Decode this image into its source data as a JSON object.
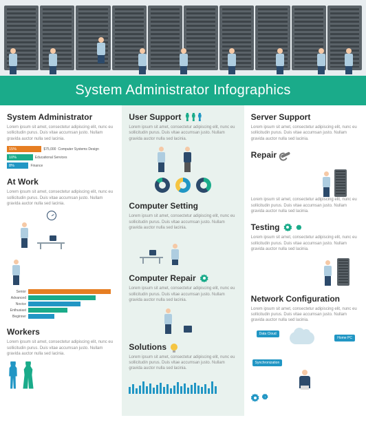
{
  "banner_title": "System Administrator Infographics",
  "lorem": "Lorem ipsum sit amet, consectetur adipiscing elit, nunc eu sollicitudin purus. Duis vitae accumsan justo. Nullam gravida auctor nulla sed lacinia.",
  "colors": {
    "primary_teal": "#1aab8a",
    "blue": "#2196c4",
    "navy": "#2c4a6b",
    "orange": "#e67e22",
    "yellow": "#f5c542",
    "col2_bg": "#e9f2ee"
  },
  "col1": {
    "sysadmin": {
      "title": "System Administrator",
      "bars": [
        {
          "pct": "15%",
          "value": "$75,000",
          "label": "Computer Systems Design",
          "color": "#e67e22",
          "width_pct": 32
        },
        {
          "pct": "10%",
          "value": "",
          "label": "Educational Services",
          "color": "#1aab8a",
          "width_pct": 24
        },
        {
          "pct": "8%",
          "value": "",
          "label": "Finance",
          "color": "#2196c4",
          "width_pct": 20
        }
      ]
    },
    "atwork": {
      "title": "At Work"
    },
    "skills": {
      "levels": [
        {
          "label": "Senior",
          "color": "#e67e22",
          "width_pct": 76
        },
        {
          "label": "Advanced",
          "color": "#1aab8a",
          "width_pct": 62
        },
        {
          "label": "Novice",
          "color": "#2196c4",
          "width_pct": 48
        },
        {
          "label": "Enthusiast",
          "color": "#1aab8a",
          "width_pct": 36
        },
        {
          "label": "Beginner",
          "color": "#2196c4",
          "width_pct": 24
        }
      ]
    },
    "workers": {
      "title": "Workers"
    }
  },
  "col2": {
    "user_support": {
      "title": "User Support",
      "donuts": [
        {
          "bg": "conic-gradient(#2c4a6b 0 85%, #1aab8a 85% 100%)"
        },
        {
          "bg": "conic-gradient(#2196c4 0 60%, #f5c542 60% 100%)"
        },
        {
          "bg": "conic-gradient(#1aab8a 0 40%, #2c4a6b 40% 100%)"
        }
      ]
    },
    "computer_setting": {
      "title": "Computer Setting"
    },
    "computer_repair": {
      "title": "Computer Repair"
    },
    "solutions": {
      "title": "Solutions",
      "bars": [
        10,
        14,
        8,
        12,
        18,
        11,
        15,
        9,
        13,
        16,
        10,
        14,
        8,
        12,
        17,
        11,
        15,
        9,
        13,
        16,
        12,
        10,
        14,
        8,
        18,
        11
      ]
    }
  },
  "col3": {
    "server_support": {
      "title": "Server Support"
    },
    "repair": {
      "title": "Repair"
    },
    "testing": {
      "title": "Testing"
    },
    "network": {
      "title": "Network Configuration",
      "tags": {
        "data_cloud": "Data Cloud",
        "home_pc": "Home PC",
        "sync": "Synchronization"
      }
    }
  }
}
